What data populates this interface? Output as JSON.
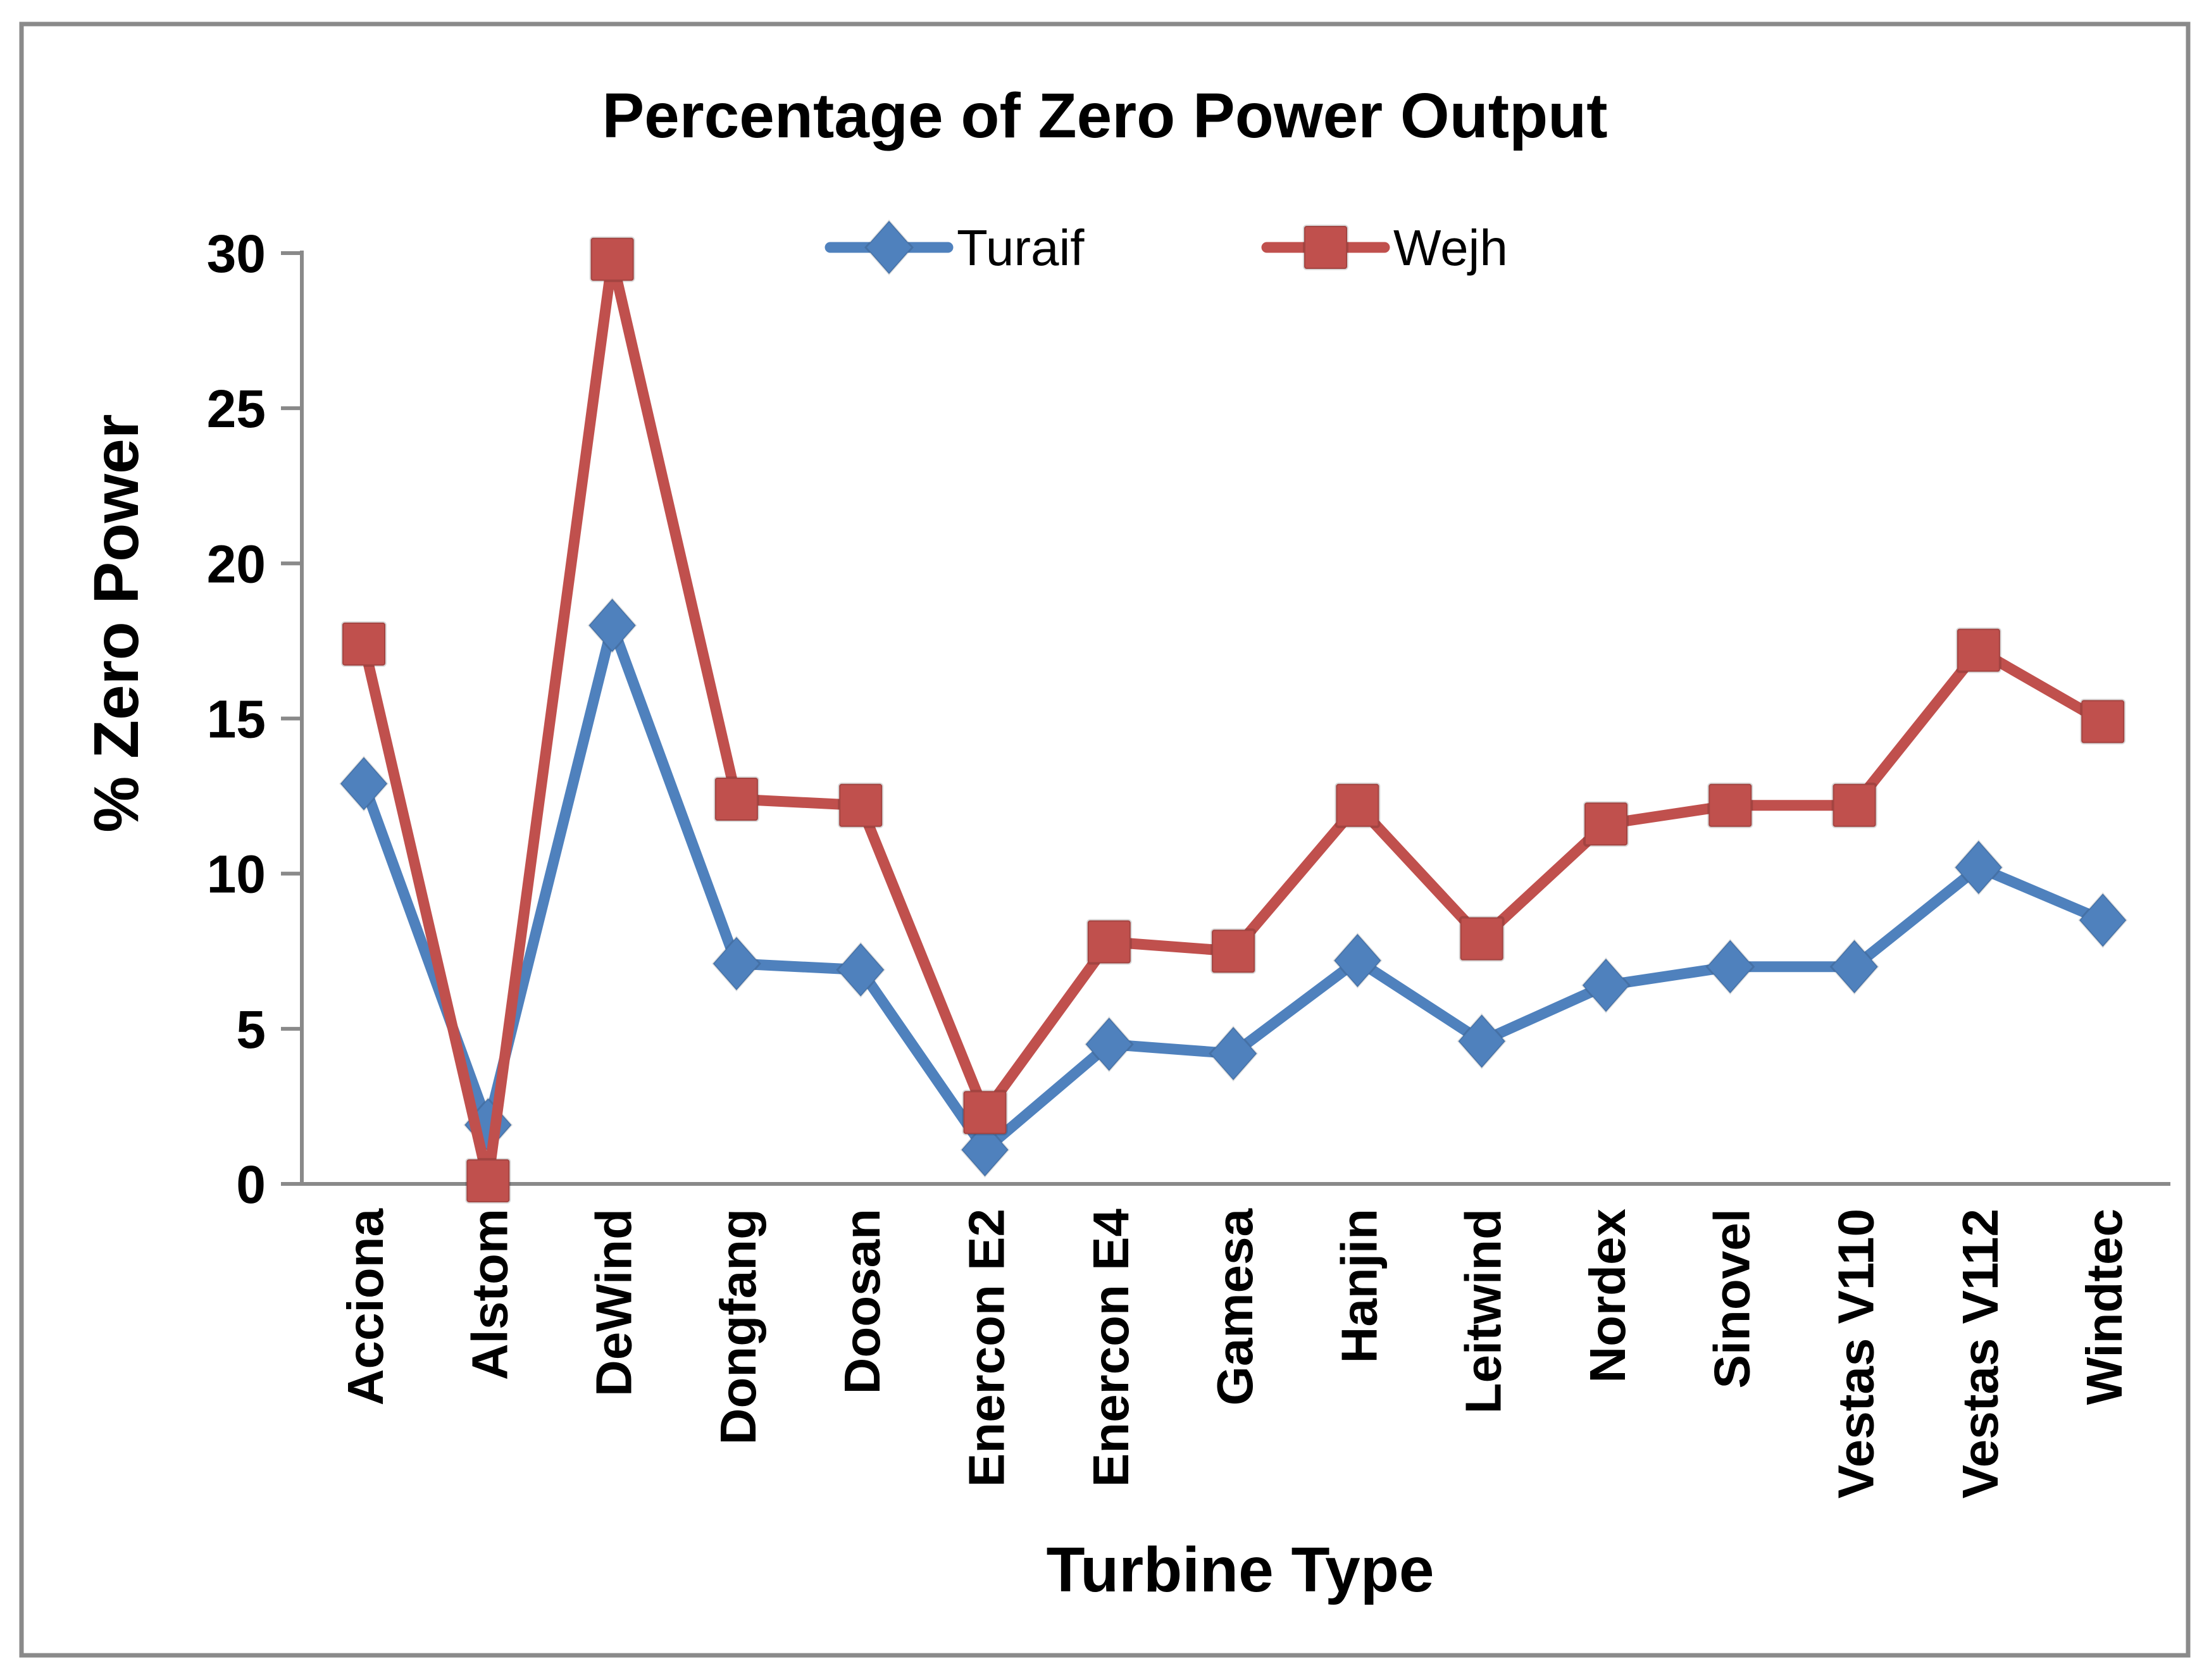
{
  "title": "Percentage of Zero Power Output",
  "colors": {
    "turaif_blue": "#4F81BD",
    "wejh_red": "#C0504D",
    "axis_gray": "#898989",
    "frame_gray": "#8A8A8A",
    "text_black": "#000000",
    "background": "#FFFFFF"
  },
  "legend": {
    "items": [
      {
        "label": "Turaif",
        "color": "#4F81BD",
        "marker": "diamond"
      },
      {
        "label": "Wejh",
        "color": "#C0504D",
        "marker": "square"
      }
    ],
    "position": "top-center"
  },
  "chart_data": {
    "type": "line",
    "title": "Percentage of Zero Power Output",
    "xlabel": "Turbine Type",
    "ylabel": "% Zero Power",
    "categories": [
      "Acciona",
      "Alstom",
      "DeWind",
      "Dongfang",
      "Doosan",
      "Enercon E2",
      "Enercon E4",
      "Gamesa",
      "Hanjin",
      "Leitwind",
      "Nordex",
      "Sinovel",
      "Vestas V110",
      "Vestas V112",
      "Windtec"
    ],
    "series": [
      {
        "name": "Turaif",
        "color": "#4F81BD",
        "marker": "diamond",
        "values": [
          12.9,
          1.9,
          18.0,
          7.1,
          6.9,
          1.1,
          4.5,
          4.2,
          7.2,
          4.6,
          6.4,
          7.0,
          7.0,
          10.2,
          8.5
        ]
      },
      {
        "name": "Wejh",
        "color": "#C0504D",
        "marker": "square",
        "values": [
          17.4,
          0.1,
          29.8,
          12.4,
          12.2,
          2.3,
          7.8,
          7.5,
          12.2,
          7.9,
          11.6,
          12.2,
          12.2,
          17.2,
          14.9
        ]
      }
    ],
    "ylim": [
      0,
      30
    ],
    "yticks": [
      0,
      5,
      10,
      15,
      20,
      25,
      30
    ],
    "grid": false,
    "legend_position": "top-center",
    "x_tick_label_rotation_deg": 90
  }
}
